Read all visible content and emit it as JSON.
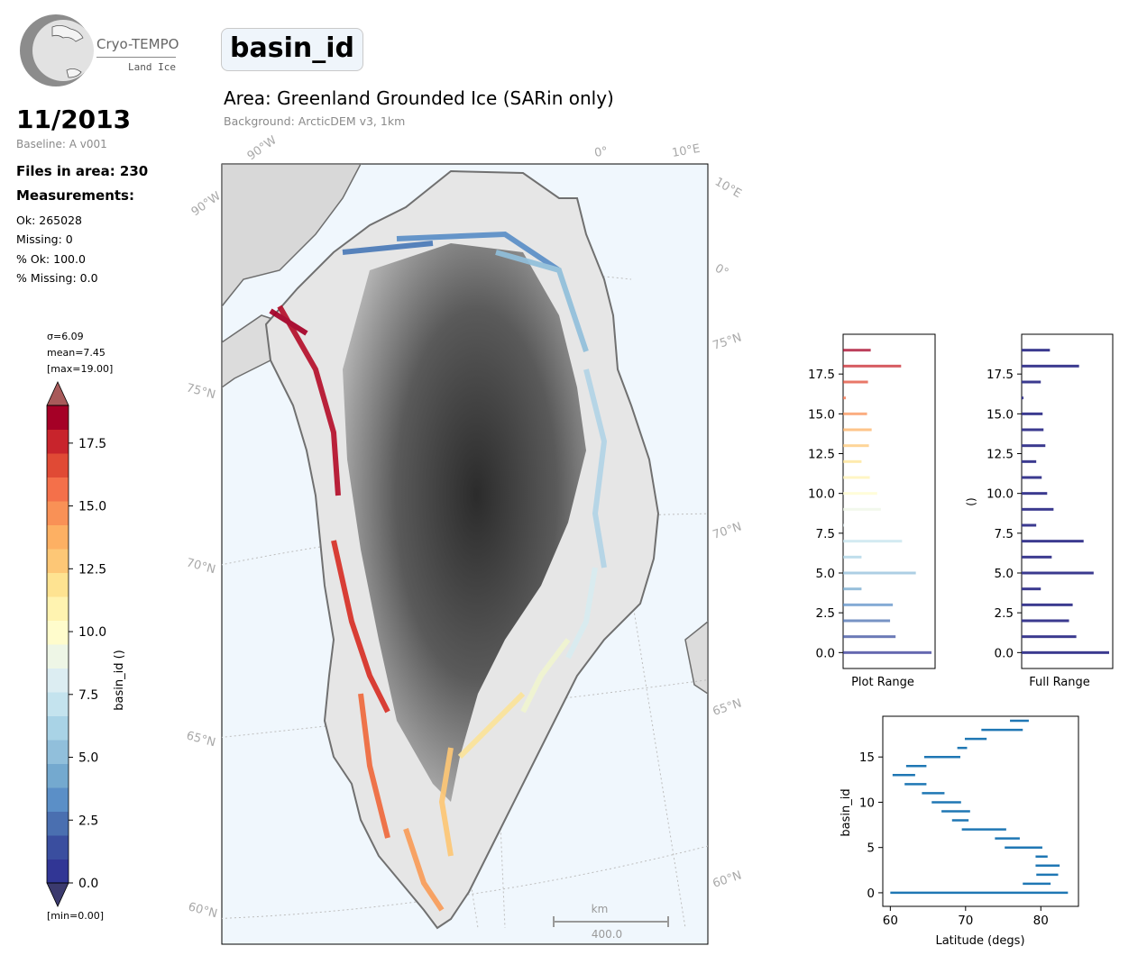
{
  "logo": {
    "name": "Cryo-TEMPO",
    "sub": "Land Ice"
  },
  "date": "11/2013",
  "baseline": "Baseline: A v001",
  "files": "Files in area: 230",
  "measurements_label": "Measurements:",
  "stats": [
    "Ok: 265028",
    "Missing: 0",
    "% Ok: 100.0",
    "% Missing: 0.0"
  ],
  "variable": "basin_id",
  "area": "Area: Greenland Grounded Ice (SARin only)",
  "background": "Background: ArcticDEM v3, 1km",
  "colorbar": {
    "label": "basin_id ()",
    "sigma": "σ=6.09",
    "mean": "mean=7.45",
    "max": "[max=19.00]",
    "min": "[min=0.00]",
    "ticks": [
      "0.0",
      "2.5",
      "5.0",
      "7.5",
      "10.0",
      "12.5",
      "15.0",
      "17.5"
    ]
  },
  "map": {
    "lat_labels": [
      "60°N",
      "65°N",
      "70°N",
      "75°N"
    ],
    "lon_labels": [
      "90°W",
      "0°",
      "10°E"
    ],
    "scale_unit": "km",
    "scale_value": "400.0"
  },
  "colors": {
    "low": "#313695",
    "mid": "#ffffbf",
    "high": "#a50026"
  },
  "chart_data": [
    {
      "type": "bar",
      "orientation": "horizontal",
      "xlabel": "Plot Range",
      "ylabel": "",
      "ylim": [
        -1,
        20
      ],
      "yticks": [
        "0.0",
        "2.5",
        "5.0",
        "7.5",
        "10.0",
        "12.5",
        "15.0",
        "17.5"
      ],
      "categories": [
        0,
        1,
        2,
        3,
        4,
        5,
        6,
        7,
        8,
        9,
        10,
        11,
        12,
        13,
        14,
        15,
        16,
        17,
        18,
        19
      ],
      "values": [
        96,
        57,
        51,
        54,
        20,
        79,
        20,
        64,
        1,
        41,
        37,
        29,
        20,
        28,
        31,
        26,
        3,
        27,
        63,
        30
      ]
    },
    {
      "type": "bar",
      "orientation": "horizontal",
      "xlabel": "Full Range",
      "ylabel": "()",
      "ylim": [
        -1,
        20
      ],
      "yticks": [
        "0.0",
        "2.5",
        "5.0",
        "7.5",
        "10.0",
        "12.5",
        "15.0",
        "17.5"
      ],
      "categories": [
        0,
        1,
        2,
        3,
        4,
        5,
        6,
        7,
        8,
        9,
        10,
        11,
        12,
        13,
        14,
        15,
        16,
        17,
        18,
        19
      ],
      "values": [
        96,
        60,
        52,
        56,
        21,
        79,
        33,
        68,
        16,
        35,
        28,
        22,
        16,
        26,
        24,
        23,
        2,
        21,
        63,
        31
      ],
      "color": "#3b3a8f"
    },
    {
      "type": "range",
      "xlabel": "Latitude (degs)",
      "ylabel": "basin_id",
      "xlim": [
        59,
        85
      ],
      "ylim": [
        -1.5,
        19.5
      ],
      "xticks": [
        "60",
        "70",
        "80"
      ],
      "yticks": [
        "0",
        "5",
        "10",
        "15"
      ],
      "series": [
        {
          "y": 0,
          "lat": [
            60,
            83.6
          ]
        },
        {
          "y": 1,
          "lat": [
            77.6,
            81.3
          ]
        },
        {
          "y": 2,
          "lat": [
            79.4,
            82.3
          ]
        },
        {
          "y": 3,
          "lat": [
            79.3,
            82.5
          ]
        },
        {
          "y": 4,
          "lat": [
            79.3,
            80.9
          ]
        },
        {
          "y": 5,
          "lat": [
            75.2,
            80.2
          ]
        },
        {
          "y": 6,
          "lat": [
            73.9,
            77.2
          ]
        },
        {
          "y": 7,
          "lat": [
            69.5,
            75.4
          ]
        },
        {
          "y": 8,
          "lat": [
            68.2,
            70.4
          ]
        },
        {
          "y": 9,
          "lat": [
            66.8,
            70.6
          ]
        },
        {
          "y": 10,
          "lat": [
            65.5,
            69.4
          ]
        },
        {
          "y": 11,
          "lat": [
            64.2,
            67.2
          ]
        },
        {
          "y": 12,
          "lat": [
            61.9,
            64.8
          ]
        },
        {
          "y": 13,
          "lat": [
            60.3,
            63.3
          ]
        },
        {
          "y": 14,
          "lat": [
            62.1,
            64.8
          ]
        },
        {
          "y": 15,
          "lat": [
            64.5,
            69.3
          ]
        },
        {
          "y": 16,
          "lat": [
            68.9,
            70.2
          ]
        },
        {
          "y": 17,
          "lat": [
            69.9,
            72.8
          ]
        },
        {
          "y": 18,
          "lat": [
            72.1,
            77.6
          ]
        },
        {
          "y": 19,
          "lat": [
            75.9,
            78.4
          ]
        }
      ],
      "color": "#1f77b4"
    }
  ]
}
